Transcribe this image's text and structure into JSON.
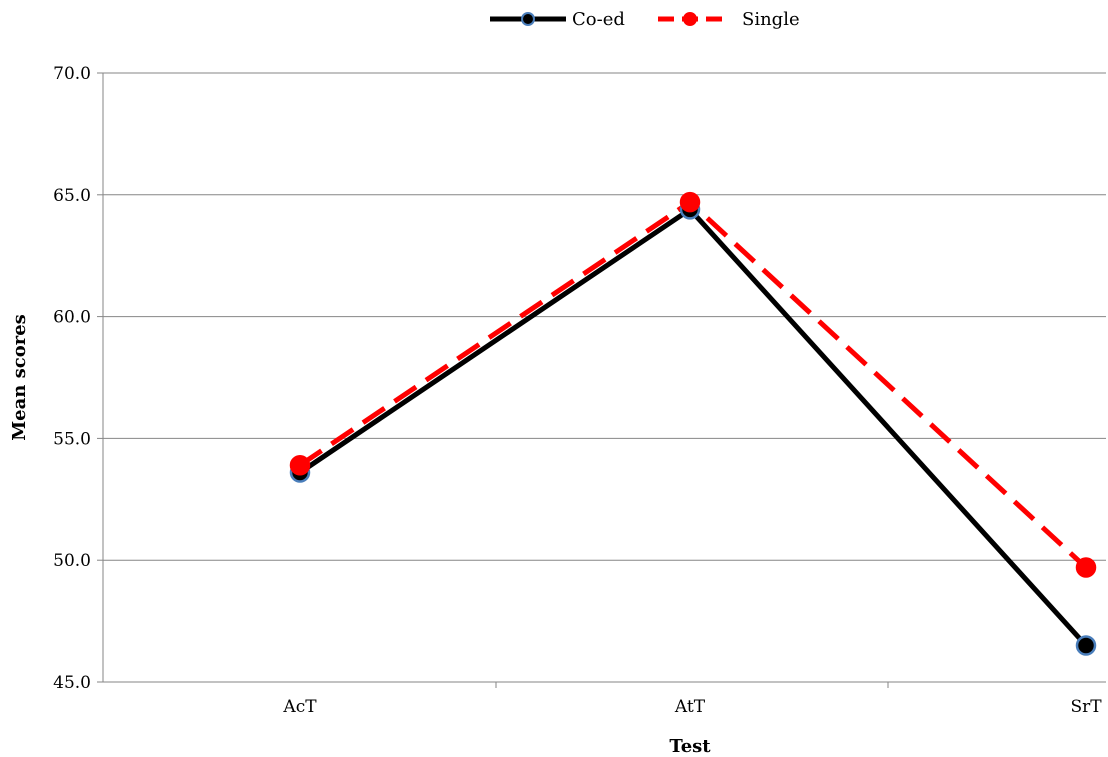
{
  "chart_data": {
    "type": "line",
    "categories": [
      "AcT",
      "AtT",
      "SrT"
    ],
    "series": [
      {
        "name": "Co-ed",
        "values": [
          53.6,
          64.4,
          46.5
        ],
        "color": "#000000",
        "marker_color": "#000000",
        "marker_edge": "#4a7ebb",
        "dash": false
      },
      {
        "name": "Single",
        "values": [
          53.9,
          64.7,
          49.7
        ],
        "color": "#ff0000",
        "marker_color": "#ff0000",
        "marker_edge": "#ff0000",
        "dash": true
      }
    ],
    "xlabel": "Test",
    "ylabel": "Mean scores",
    "ylim": [
      45,
      70
    ],
    "yticks": [
      "45.0",
      "50.0",
      "55.0",
      "60.0",
      "65.0",
      "70.0"
    ],
    "grid": true,
    "legend_position": "top-center"
  }
}
